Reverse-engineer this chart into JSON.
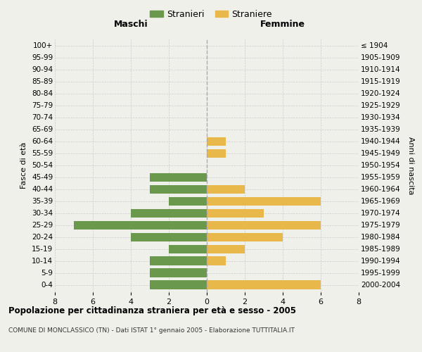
{
  "age_groups": [
    "100+",
    "95-99",
    "90-94",
    "85-89",
    "80-84",
    "75-79",
    "70-74",
    "65-69",
    "60-64",
    "55-59",
    "50-54",
    "45-49",
    "40-44",
    "35-39",
    "30-34",
    "25-29",
    "20-24",
    "15-19",
    "10-14",
    "5-9",
    "0-4"
  ],
  "birth_years": [
    "≤ 1904",
    "1905-1909",
    "1910-1914",
    "1915-1919",
    "1920-1924",
    "1925-1929",
    "1930-1934",
    "1935-1939",
    "1940-1944",
    "1945-1949",
    "1950-1954",
    "1955-1959",
    "1960-1964",
    "1965-1969",
    "1970-1974",
    "1975-1979",
    "1980-1984",
    "1985-1989",
    "1990-1994",
    "1995-1999",
    "2000-2004"
  ],
  "males": [
    0,
    0,
    0,
    0,
    0,
    0,
    0,
    0,
    0,
    0,
    0,
    3,
    3,
    2,
    4,
    7,
    4,
    2,
    3,
    3,
    3
  ],
  "females": [
    0,
    0,
    0,
    0,
    0,
    0,
    0,
    0,
    1,
    1,
    0,
    0,
    2,
    6,
    3,
    6,
    4,
    2,
    1,
    0,
    6
  ],
  "male_color": "#6a994e",
  "female_color": "#e9b84a",
  "background_color": "#f0f0eb",
  "grid_color": "#cccccc",
  "title": "Popolazione per cittadinanza straniera per età e sesso - 2005",
  "subtitle": "COMUNE DI MONCLASSICO (TN) - Dati ISTAT 1° gennaio 2005 - Elaborazione TUTTITALIA.IT",
  "xlabel_left": "Maschi",
  "xlabel_right": "Femmine",
  "ylabel_left": "Fasce di età",
  "ylabel_right": "Anni di nascita",
  "legend_male": "Stranieri",
  "legend_female": "Straniere",
  "xlim": 8,
  "bar_height": 0.75
}
